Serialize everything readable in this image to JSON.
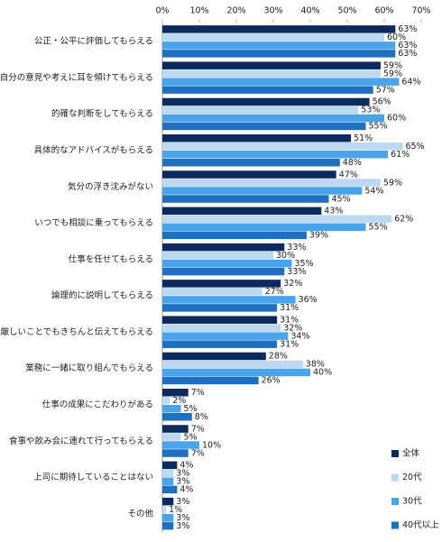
{
  "chart_data": {
    "type": "hbar",
    "categories": [
      "公正・公平に評価してもらえる",
      "自分の意見や考えに耳を傾けてもらえる",
      "的確な判断をしてもらえる",
      "具体的なアドバイスがもらえる",
      "気分の浮き沈みがない",
      "いつでも相談に乗ってもらえる",
      "仕事を任せてもらえる",
      "論理的に説明してもらえる",
      "厳しいことでもきちんと伝えてもらえる",
      "業務に一緒に取り組んでもらえる",
      "仕事の成果にこだわりがある",
      "食事や飲み会に連れて行ってもらえる",
      "上司に期待していることはない",
      "その他"
    ],
    "series": [
      {
        "name": "全体",
        "color": "#0c2a5e",
        "values": [
          63,
          59,
          56,
          51,
          47,
          43,
          33,
          32,
          31,
          28,
          7,
          7,
          4,
          3
        ],
        "value_labels": [
          "63%",
          "59%",
          "56%",
          "51%",
          "47%",
          "43%",
          "33%",
          "32%",
          "31%",
          "28%",
          "7%",
          "7%",
          "4%",
          "3%"
        ]
      },
      {
        "name": "20代",
        "color": "#bdd9f2",
        "values": [
          60,
          59,
          53,
          65,
          59,
          62,
          30,
          27,
          32,
          38,
          2,
          5,
          3,
          1
        ],
        "value_labels": [
          "60%",
          "59%",
          "53%",
          "65%",
          "59%",
          "62%",
          "30%",
          "27%",
          "32%",
          "38%",
          "2%",
          "5%",
          "3%",
          "1%"
        ]
      },
      {
        "name": "30代",
        "color": "#4ba4ea",
        "values": [
          63,
          64,
          60,
          61,
          54,
          55,
          35,
          36,
          34,
          40,
          5,
          10,
          3,
          3
        ],
        "value_labels": [
          "63%",
          "64%",
          "60%",
          "61%",
          "54%",
          "55%",
          "35%",
          "36%",
          "34%",
          "40%",
          "5%",
          "10%",
          "3%",
          "3%"
        ]
      },
      {
        "name": "40代以上",
        "color": "#1f70c1",
        "values": [
          63,
          57,
          55,
          48,
          45,
          39,
          33,
          31,
          31,
          26,
          8,
          7,
          4,
          3
        ],
        "value_labels": [
          "63%",
          "57%",
          "55%",
          "48%",
          "45%",
          "39%",
          "33%",
          "31%",
          "31%",
          "26%",
          "8%",
          "7%",
          "4%",
          "3%"
        ]
      }
    ],
    "xlim": [
      0,
      70
    ],
    "xticks": [
      {
        "value": 0,
        "label": "0%"
      },
      {
        "value": 10,
        "label": "10%"
      },
      {
        "value": 20,
        "label": "20%"
      },
      {
        "value": 30,
        "label": "30%"
      },
      {
        "value": 40,
        "label": "40%"
      },
      {
        "value": 50,
        "label": "50%"
      },
      {
        "value": 60,
        "label": "60%"
      },
      {
        "value": 70,
        "label": "70%"
      }
    ],
    "legend": "bottom-right"
  }
}
